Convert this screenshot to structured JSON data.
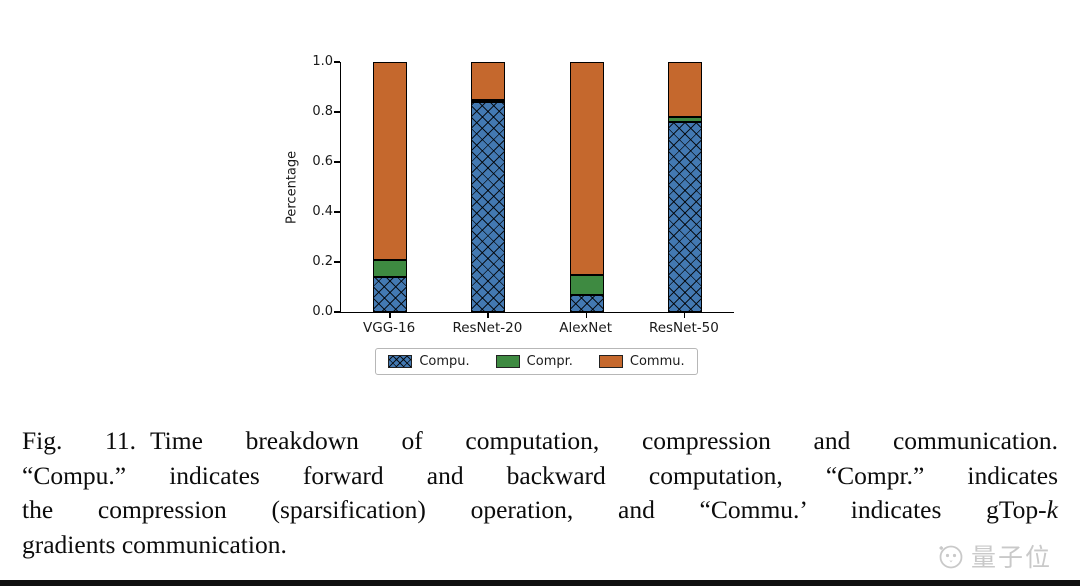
{
  "chart_data": {
    "type": "stacked_bar",
    "title": "",
    "xlabel": "",
    "ylabel": "Percentage",
    "ylim": [
      0,
      1
    ],
    "yticks": [
      "0.0",
      "0.2",
      "0.4",
      "0.6",
      "0.8",
      "1.0"
    ],
    "grid": false,
    "legend_position": "below center",
    "categories": [
      "VGG-16",
      "ResNet-20",
      "AlexNet",
      "ResNet-50"
    ],
    "series": [
      {
        "name": "Compu.",
        "color": "#4379b2",
        "hatch": "x",
        "values": [
          0.14,
          0.84,
          0.07,
          0.76
        ]
      },
      {
        "name": "Compr.",
        "color": "#3e8a41",
        "hatch": "",
        "values": [
          0.07,
          0.01,
          0.08,
          0.02
        ]
      },
      {
        "name": "Commu.",
        "color": "#c5682d",
        "hatch": "",
        "values": [
          0.79,
          0.15,
          0.85,
          0.22
        ]
      }
    ]
  },
  "caption": {
    "fig_label": "Fig. 11.",
    "line1_rest": "Time breakdown of computation, compression and communication.",
    "line2": "“Compu.” indicates forward and backward computation, “Compr.” indicates",
    "line3_before_k": "the compression (sparsification) operation, and “Commu.’ indicates gTop-",
    "line3_italic": "k",
    "line4": "gradients communication."
  },
  "watermark": {
    "text": "量子位"
  }
}
